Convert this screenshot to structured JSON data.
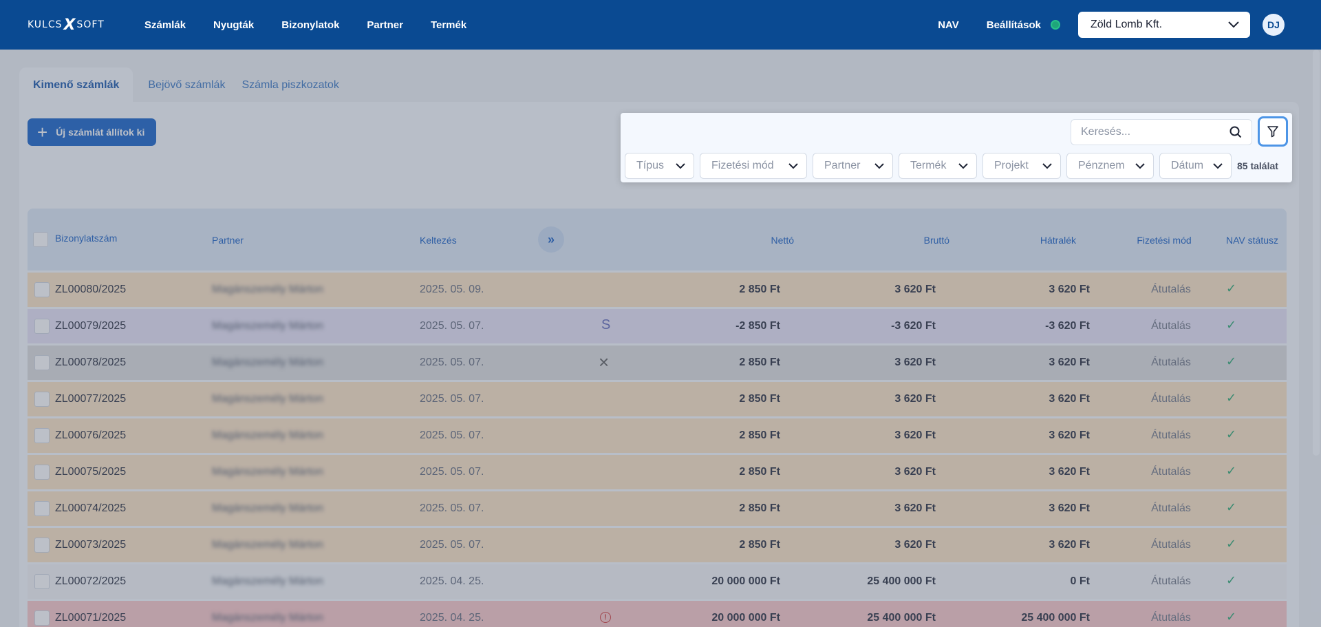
{
  "header": {
    "logo_left": "KULCS",
    "logo_x": "X",
    "logo_right": "SOFT",
    "nav": [
      "Számlák",
      "Nyugták",
      "Bizonylatok",
      "Partner",
      "Termék"
    ],
    "nav_link": "NAV",
    "settings": "Beállítások",
    "company": "Zöld Lomb Kft.",
    "avatar": "DJ"
  },
  "tabs": [
    "Kimenő számlák",
    "Bejövő számlák",
    "Számla piszkozatok"
  ],
  "new_invoice_label": "Új számlát állítok ki",
  "filters": {
    "search_placeholder": "Keresés...",
    "chips": [
      "Típus",
      "Fizetési mód",
      "Partner",
      "Termék",
      "Projekt",
      "Pénznem",
      "Dátum"
    ],
    "result_count": "85 találat"
  },
  "table": {
    "columns": {
      "number": "Bizonylatszám",
      "partner": "Partner",
      "date": "Keltezés",
      "net": "Nettó",
      "gross": "Bruttó",
      "due": "Hátralék",
      "payment": "Fizetési mód",
      "nav": "NAV státusz"
    },
    "rows": [
      {
        "number": "ZL00080/2025",
        "partner": "Magánszemély Márton",
        "date": "2025. 05. 09.",
        "flag": "",
        "net": "2 850 Ft",
        "gross": "3 620 Ft",
        "due": "3 620 Ft",
        "payment": "Átutalás",
        "bg": "#fde3c2"
      },
      {
        "number": "ZL00079/2025",
        "partner": "Magánszemély Márton",
        "date": "2025. 05. 07.",
        "flag": "S",
        "net": "-2 850 Ft",
        "gross": "-3 620 Ft",
        "due": "-3 620 Ft",
        "payment": "Átutalás",
        "bg": "#e7e2f6"
      },
      {
        "number": "ZL00078/2025",
        "partner": "Magánszemély Márton",
        "date": "2025. 05. 07.",
        "flag": "×",
        "net": "2 850 Ft",
        "gross": "3 620 Ft",
        "due": "3 620 Ft",
        "payment": "Átutalás",
        "bg": "#dcdcdc"
      },
      {
        "number": "ZL00077/2025",
        "partner": "Magánszemély Márton",
        "date": "2025. 05. 07.",
        "flag": "",
        "net": "2 850 Ft",
        "gross": "3 620 Ft",
        "due": "3 620 Ft",
        "payment": "Átutalás",
        "bg": "#fde3c2"
      },
      {
        "number": "ZL00076/2025",
        "partner": "Magánszemély Márton",
        "date": "2025. 05. 07.",
        "flag": "",
        "net": "2 850 Ft",
        "gross": "3 620 Ft",
        "due": "3 620 Ft",
        "payment": "Átutalás",
        "bg": "#fde3c2"
      },
      {
        "number": "ZL00075/2025",
        "partner": "Magánszemély Márton",
        "date": "2025. 05. 07.",
        "flag": "",
        "net": "2 850 Ft",
        "gross": "3 620 Ft",
        "due": "3 620 Ft",
        "payment": "Átutalás",
        "bg": "#fde3c2"
      },
      {
        "number": "ZL00074/2025",
        "partner": "Magánszemély Márton",
        "date": "2025. 05. 07.",
        "flag": "",
        "net": "2 850 Ft",
        "gross": "3 620 Ft",
        "due": "3 620 Ft",
        "payment": "Átutalás",
        "bg": "#fde3c2"
      },
      {
        "number": "ZL00073/2025",
        "partner": "Magánszemély Márton",
        "date": "2025. 05. 07.",
        "flag": "",
        "net": "2 850 Ft",
        "gross": "3 620 Ft",
        "due": "3 620 Ft",
        "payment": "Átutalás",
        "bg": "#fde3c2"
      },
      {
        "number": "ZL00072/2025",
        "partner": "Magánszemély Márton",
        "date": "2025. 04. 25.",
        "flag": "",
        "net": "20 000 000 Ft",
        "gross": "25 400 000 Ft",
        "due": "0 Ft",
        "payment": "Átutalás",
        "bg": "#f4f5f7"
      },
      {
        "number": "ZL00071/2025",
        "partner": "Magánszemély Márton",
        "date": "2025. 04. 25.",
        "flag": "!",
        "net": "20 000 000 Ft",
        "gross": "25 400 000 Ft",
        "due": "25 400 000 Ft",
        "payment": "Átutalás",
        "bg": "#fbc6c6"
      }
    ]
  },
  "nav_status_icon": "check-icon",
  "colors": {
    "primary": "#0a4a92",
    "button": "#0a5ac6",
    "accent": "#4d95e6",
    "ok": "#22a46a"
  }
}
